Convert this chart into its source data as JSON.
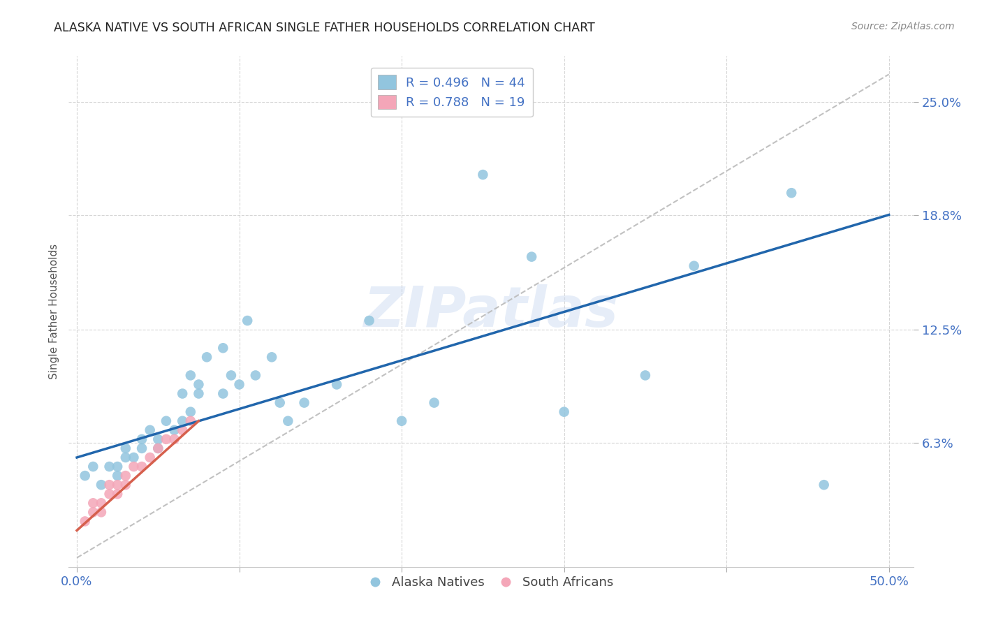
{
  "title": "ALASKA NATIVE VS SOUTH AFRICAN SINGLE FATHER HOUSEHOLDS CORRELATION CHART",
  "source": "Source: ZipAtlas.com",
  "ylabel": "Single Father Households",
  "yticks": [
    "6.3%",
    "12.5%",
    "18.8%",
    "25.0%"
  ],
  "ytick_vals": [
    0.063,
    0.125,
    0.188,
    0.25
  ],
  "xtick_vals": [
    0.0,
    0.1,
    0.2,
    0.3,
    0.4,
    0.5
  ],
  "xlim": [
    -0.005,
    0.515
  ],
  "ylim": [
    -0.005,
    0.275
  ],
  "legend_label1": "Alaska Natives",
  "legend_label2": "South Africans",
  "watermark": "ZIPatlas",
  "blue_color": "#92c5de",
  "pink_color": "#f4a6b8",
  "line_blue": "#2166ac",
  "line_pink": "#d6604d",
  "line_dash_color": "#bbbbbb",
  "title_color": "#222222",
  "axis_label_color": "#4472c4",
  "tick_label_color": "#4472c4",
  "alaska_x": [
    0.005,
    0.01,
    0.015,
    0.02,
    0.025,
    0.025,
    0.03,
    0.03,
    0.035,
    0.04,
    0.04,
    0.045,
    0.05,
    0.05,
    0.055,
    0.06,
    0.065,
    0.065,
    0.07,
    0.07,
    0.075,
    0.075,
    0.08,
    0.09,
    0.09,
    0.095,
    0.1,
    0.105,
    0.11,
    0.12,
    0.125,
    0.13,
    0.14,
    0.16,
    0.18,
    0.2,
    0.22,
    0.25,
    0.28,
    0.3,
    0.35,
    0.38,
    0.44,
    0.46
  ],
  "alaska_y": [
    0.045,
    0.05,
    0.04,
    0.05,
    0.045,
    0.05,
    0.055,
    0.06,
    0.055,
    0.06,
    0.065,
    0.07,
    0.06,
    0.065,
    0.075,
    0.07,
    0.075,
    0.09,
    0.08,
    0.1,
    0.09,
    0.095,
    0.11,
    0.09,
    0.115,
    0.1,
    0.095,
    0.13,
    0.1,
    0.11,
    0.085,
    0.075,
    0.085,
    0.095,
    0.13,
    0.075,
    0.085,
    0.21,
    0.165,
    0.08,
    0.1,
    0.16,
    0.2,
    0.04
  ],
  "sa_x": [
    0.005,
    0.01,
    0.01,
    0.015,
    0.015,
    0.02,
    0.02,
    0.025,
    0.025,
    0.03,
    0.03,
    0.035,
    0.04,
    0.045,
    0.05,
    0.055,
    0.06,
    0.065,
    0.07
  ],
  "sa_y": [
    0.02,
    0.025,
    0.03,
    0.025,
    0.03,
    0.035,
    0.04,
    0.035,
    0.04,
    0.04,
    0.045,
    0.05,
    0.05,
    0.055,
    0.06,
    0.065,
    0.065,
    0.07,
    0.075
  ],
  "blue_line_x0": 0.0,
  "blue_line_y0": 0.055,
  "blue_line_x1": 0.5,
  "blue_line_y1": 0.188,
  "pink_line_x0": 0.0,
  "pink_line_y0": 0.015,
  "pink_line_x1": 0.075,
  "pink_line_y1": 0.075,
  "dash_line_x0": 0.0,
  "dash_line_y0": 0.0,
  "dash_line_x1": 0.5,
  "dash_line_y1": 0.265
}
